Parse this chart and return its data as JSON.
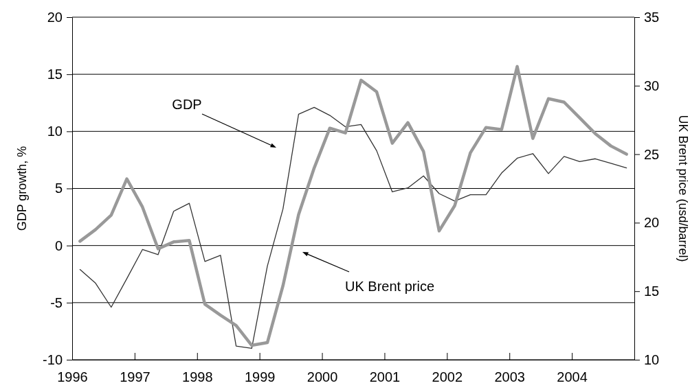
{
  "chart_data": {
    "type": "line",
    "ylabel": "GDP growth, %",
    "y2label": "UK Brent price (usd/barrel)",
    "x": [
      1996.125,
      1996.375,
      1996.625,
      1996.875,
      1997.125,
      1997.375,
      1997.625,
      1997.875,
      1998.125,
      1998.375,
      1998.625,
      1998.875,
      1999.125,
      1999.375,
      1999.625,
      1999.875,
      2000.125,
      2000.375,
      2000.625,
      2000.875,
      2001.125,
      2001.375,
      2001.625,
      2001.875,
      2002.125,
      2002.375,
      2002.625,
      2002.875,
      2003.125,
      2003.375,
      2003.625,
      2003.875,
      2004.125,
      2004.375,
      2004.625,
      2004.875
    ],
    "series": [
      {
        "color": "#333333",
        "values": [
          -2.1,
          -3.3,
          -5.4,
          -2.9,
          -0.35,
          -0.8,
          3.0,
          3.7,
          -1.4,
          -0.85,
          -8.8,
          -9.0,
          -1.8,
          3.2,
          11.5,
          12.1,
          11.4,
          10.4,
          10.6,
          8.3,
          4.7,
          5.05,
          6.1,
          4.55,
          3.9,
          4.45,
          4.45,
          6.35,
          7.65,
          8.05,
          6.3,
          7.8,
          7.35,
          7.6,
          7.2,
          6.8
        ]
      },
      {
        "color": "#999999",
        "axis": "y2",
        "values": [
          18.65,
          19.5,
          20.55,
          23.2,
          21.15,
          18.1,
          18.6,
          18.7,
          14.05,
          13.25,
          12.5,
          11.05,
          11.25,
          15.4,
          20.6,
          24.0,
          26.9,
          26.55,
          30.4,
          29.55,
          25.8,
          27.3,
          25.2,
          19.4,
          21.25,
          25.1,
          26.95,
          26.8,
          31.4,
          26.15,
          29.05,
          28.8,
          27.65,
          26.5,
          25.6,
          25.0
        ]
      }
    ],
    "xlim": [
      1996,
      2005
    ],
    "xticks": [
      1996,
      1997,
      1998,
      1999,
      2000,
      2001,
      2002,
      2003,
      2004
    ],
    "ylim": [
      -10,
      20
    ],
    "yticks": [
      -10,
      -5,
      0,
      5,
      10,
      15,
      20
    ],
    "y2lim": [
      10,
      35
    ],
    "y2ticks": [
      10,
      15,
      20,
      25,
      30,
      35
    ],
    "grid": "y",
    "marker": "none",
    "line_style": "solid",
    "annotations": [
      "GDP",
      "UK Brent price"
    ]
  }
}
